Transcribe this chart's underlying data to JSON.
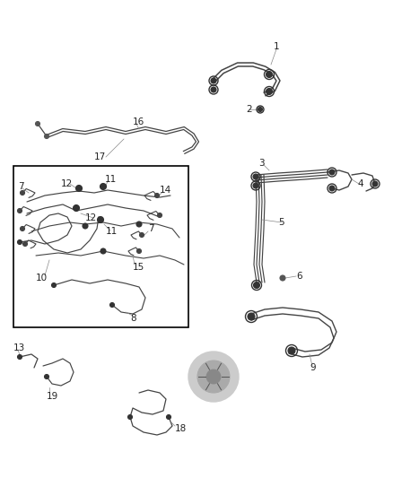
{
  "bg_color": "#ffffff",
  "line_color": "#444444",
  "box_color": "#000000",
  "label_color": "#222222",
  "fig_width": 4.38,
  "fig_height": 5.33,
  "dpi": 100,
  "font_size": 7.5
}
